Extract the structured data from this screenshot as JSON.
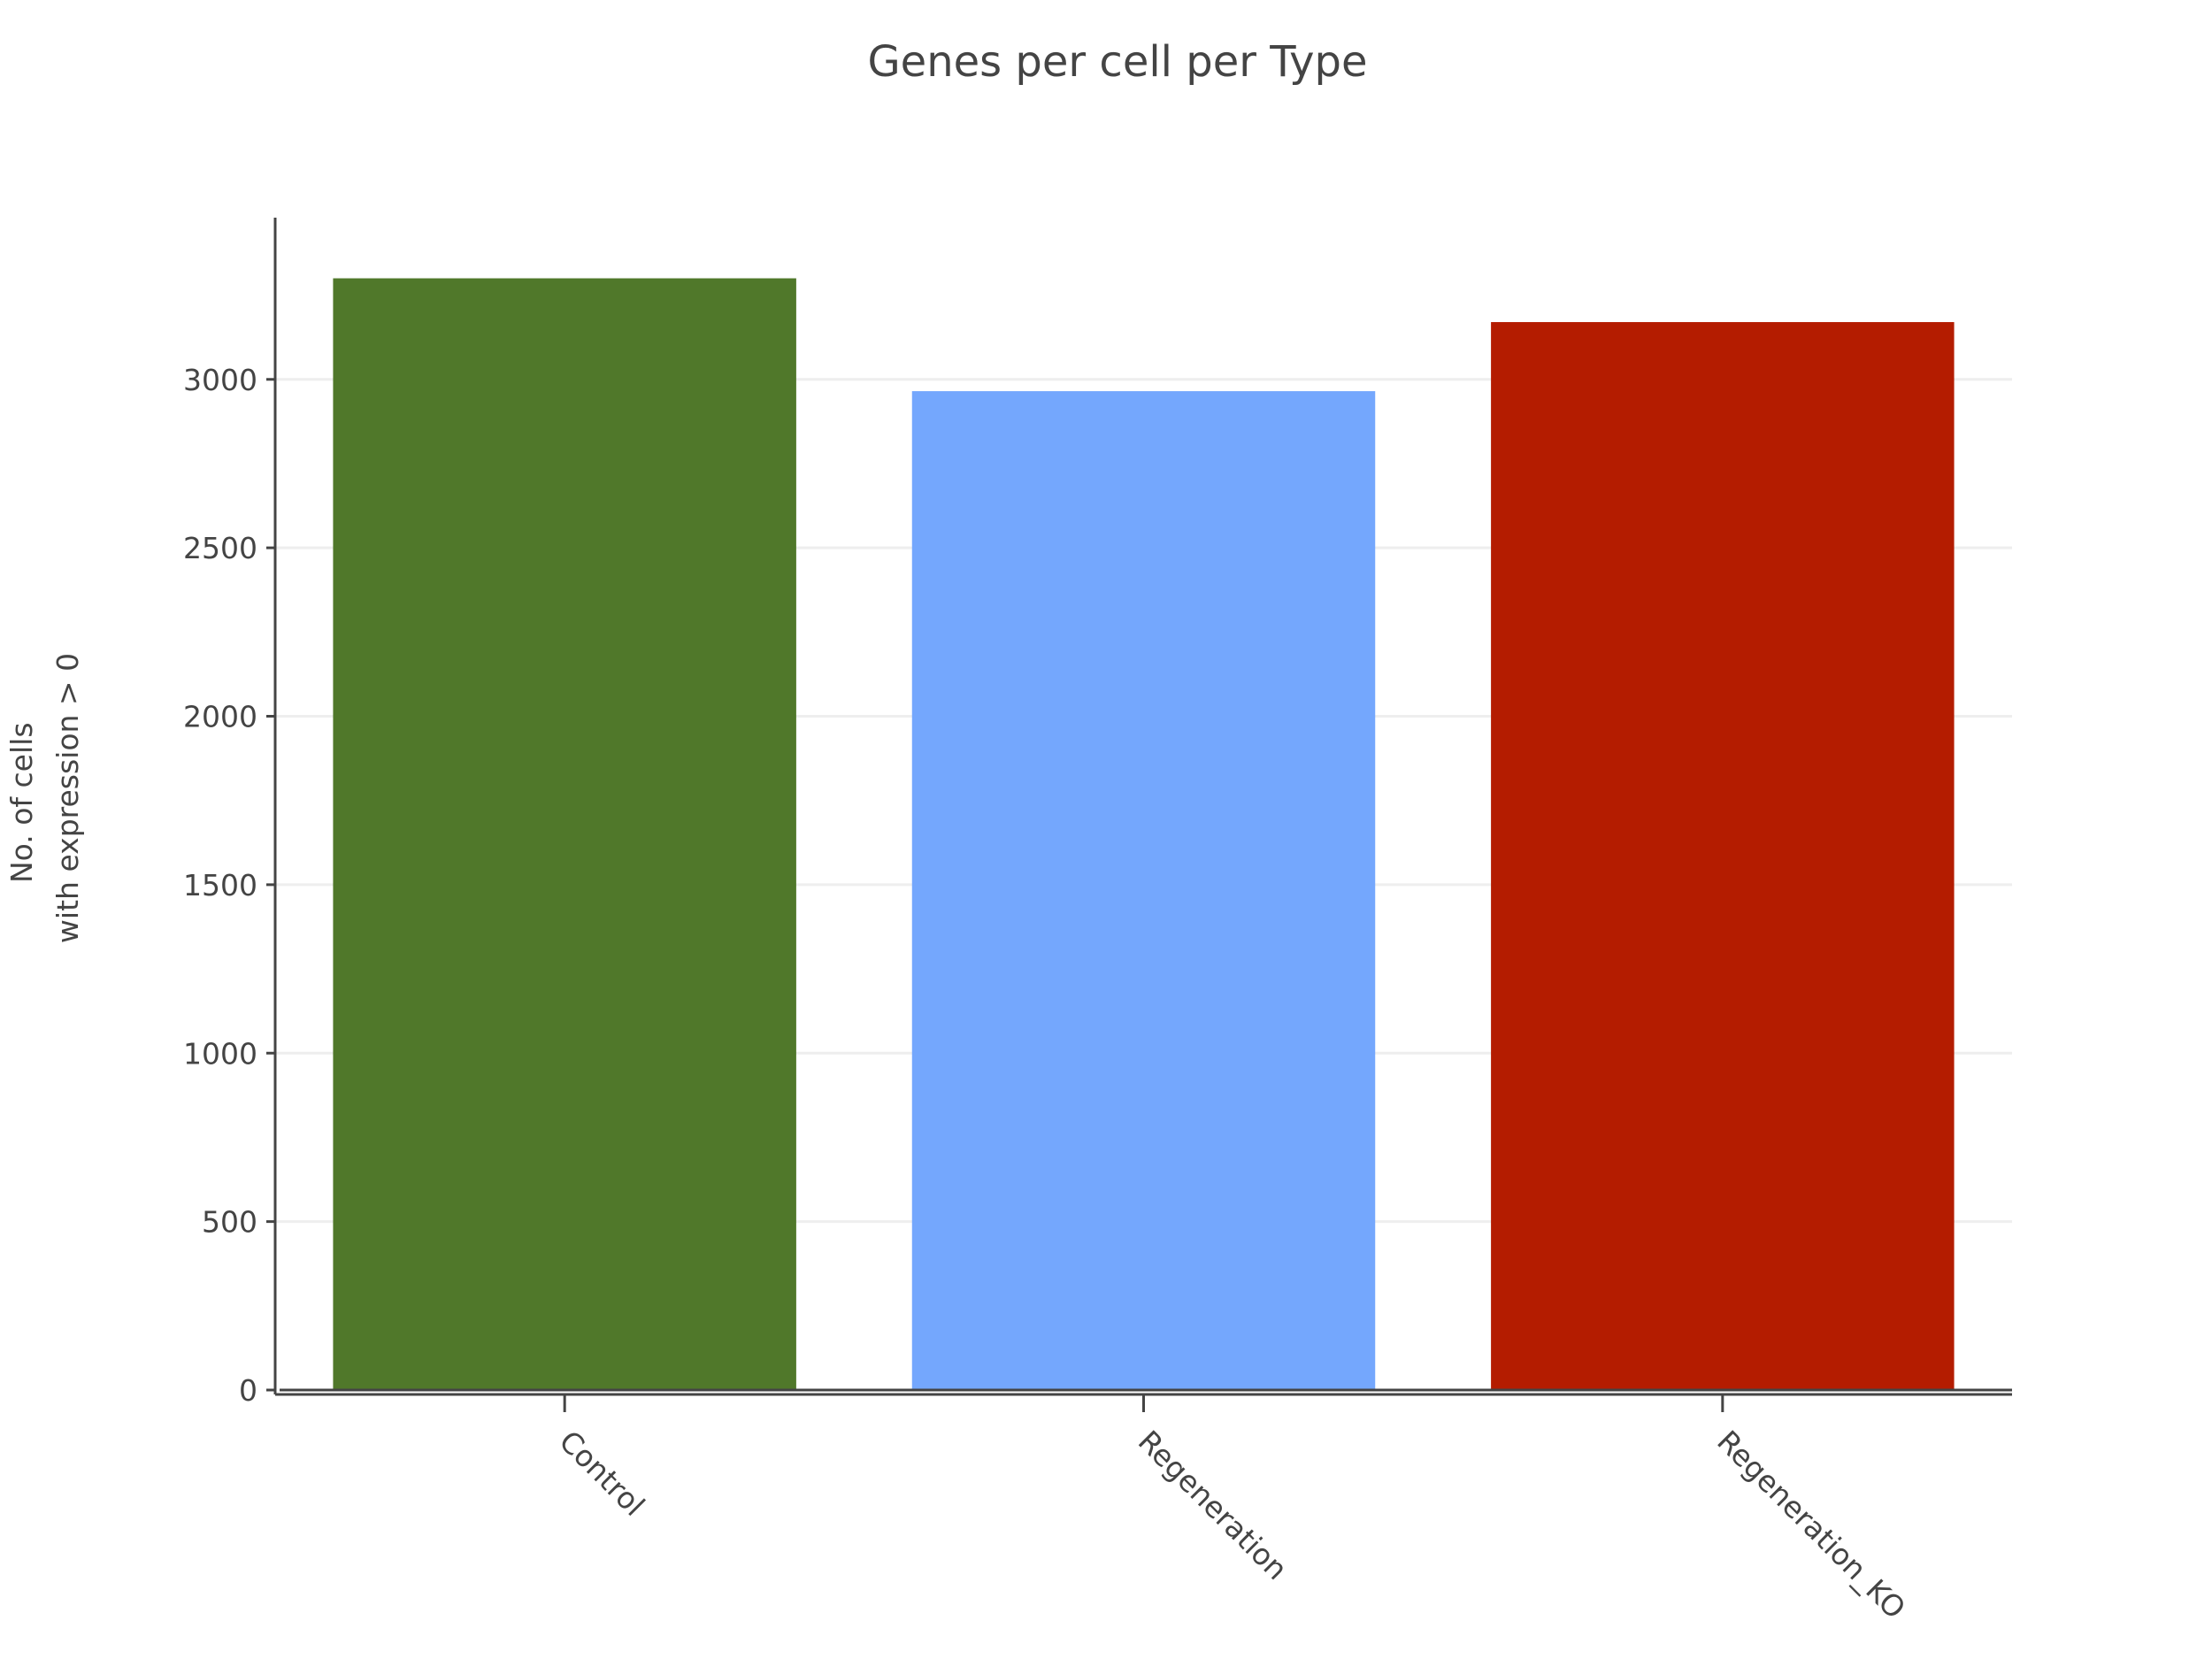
{
  "chart_data": {
    "type": "bar",
    "title": "Genes per cell per Type",
    "xlabel": "",
    "ylabel_lines": [
      "No. of cells",
      "with expression > 0"
    ],
    "categories": [
      "Control",
      "Regeneration",
      "Regeneration_KO"
    ],
    "values": [
      3300,
      2965,
      3170
    ],
    "colors": [
      "#50782a",
      "#74a7fd",
      "#b41c00"
    ],
    "ylim": [
      0,
      3480
    ],
    "yticks": [
      0,
      500,
      1000,
      1500,
      2000,
      2500,
      3000
    ],
    "grid": true,
    "legend": "none"
  }
}
